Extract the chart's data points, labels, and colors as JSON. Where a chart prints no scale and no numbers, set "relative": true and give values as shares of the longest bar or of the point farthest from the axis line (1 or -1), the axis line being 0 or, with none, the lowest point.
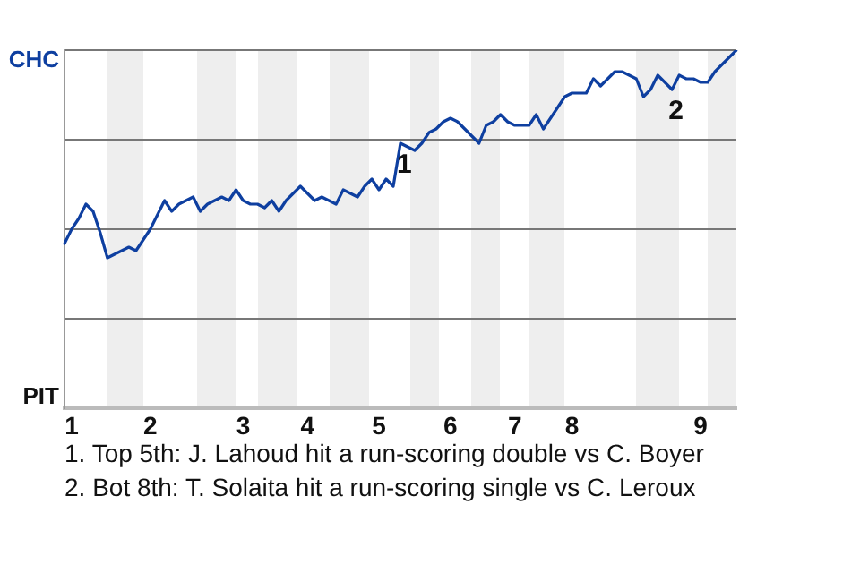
{
  "chart_data": {
    "type": "line",
    "relative": true,
    "categories": [
      null,
      "1",
      null,
      null,
      null,
      null,
      null,
      null,
      null,
      null,
      null,
      null,
      "2",
      null,
      null,
      null,
      null,
      null,
      null,
      null,
      null,
      null,
      null,
      null,
      null,
      "3",
      null,
      null,
      null,
      null,
      null,
      null,
      null,
      null,
      "4",
      null,
      null,
      null,
      null,
      null,
      null,
      null,
      null,
      null,
      "5",
      null,
      null,
      null,
      null,
      null,
      null,
      null,
      null,
      null,
      "6",
      null,
      null,
      null,
      null,
      null,
      null,
      null,
      null,
      "7",
      null,
      null,
      null,
      null,
      null,
      null,
      null,
      "8",
      null,
      null,
      null,
      null,
      null,
      null,
      null,
      null,
      null,
      null,
      null,
      null,
      null,
      null,
      null,
      null,
      null,
      "9",
      null,
      null,
      null,
      null,
      null
    ],
    "grid": "y",
    "legend": false,
    "marker": "none",
    "line_style": "solid",
    "series": [
      {
        "color": "#0e3fa0",
        "values": [
          0.46,
          0.5,
          0.53,
          0.57,
          0.55,
          0.49,
          0.42,
          0.43,
          0.44,
          0.45,
          0.44,
          0.47,
          0.5,
          0.54,
          0.58,
          0.55,
          0.57,
          0.58,
          0.59,
          0.55,
          0.57,
          0.58,
          0.59,
          0.58,
          0.61,
          0.58,
          0.57,
          0.57,
          0.56,
          0.58,
          0.55,
          0.58,
          0.6,
          0.62,
          0.6,
          0.58,
          0.59,
          0.58,
          0.57,
          0.61,
          0.6,
          0.59,
          0.62,
          0.64,
          0.61,
          0.64,
          0.62,
          0.74,
          0.73,
          0.72,
          0.74,
          0.77,
          0.78,
          0.8,
          0.81,
          0.8,
          0.78,
          0.76,
          0.74,
          0.79,
          0.8,
          0.82,
          0.8,
          0.79,
          0.79,
          0.79,
          0.82,
          0.78,
          0.81,
          0.84,
          0.87,
          0.88,
          0.88,
          0.88,
          0.92,
          0.9,
          0.92,
          0.94,
          0.94,
          0.93,
          0.92,
          0.87,
          0.89,
          0.93,
          0.91,
          0.89,
          0.93,
          0.92,
          0.92,
          0.91,
          0.91,
          0.94,
          0.96,
          0.98,
          1
        ]
      }
    ],
    "annotations": [
      "CHC",
      "PIT",
      "1",
      "2",
      "1. Top 5th: J. Lahoud hit a run-scoring double vs C. Boyer",
      "2. Bot 8th: T. Solaita hit a run-scoring single vs C. Leroux"
    ]
  }
}
